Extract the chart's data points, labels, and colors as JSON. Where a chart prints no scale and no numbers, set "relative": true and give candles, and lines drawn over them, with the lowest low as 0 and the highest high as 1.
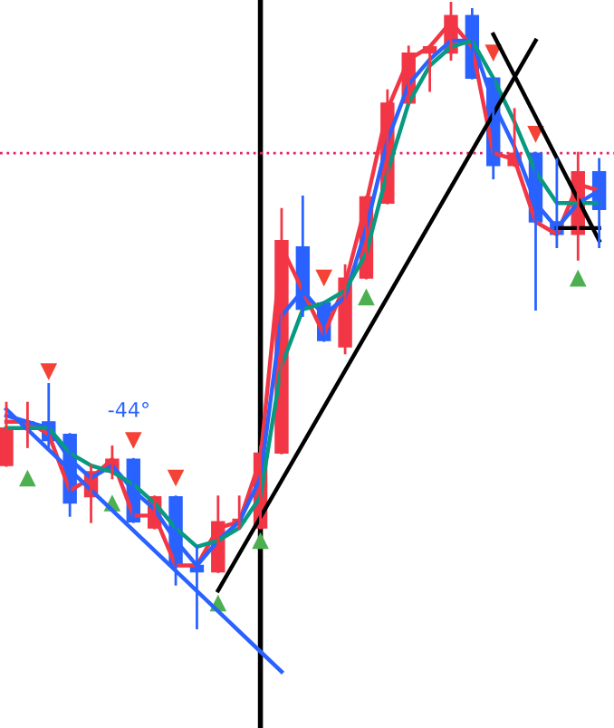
{
  "chart_data": {
    "type": "candlestick",
    "relative": true,
    "categories": [
      null,
      null,
      null,
      null,
      null,
      null,
      null,
      null,
      null,
      null,
      null,
      null,
      null,
      null,
      null,
      null,
      null,
      null,
      null,
      null,
      null,
      null,
      null,
      null,
      null,
      null,
      null,
      null,
      null
    ],
    "ohlc": [
      [
        0.26,
        0.36,
        0.26,
        0.32
      ],
      [
        0.32,
        0.36,
        0.29,
        0.33
      ],
      [
        0.33,
        0.39,
        0.29,
        0.3
      ],
      [
        0.31,
        0.31,
        0.18,
        0.2
      ],
      [
        0.21,
        0.26,
        0.17,
        0.25
      ],
      [
        0.25,
        0.29,
        0.24,
        0.27
      ],
      [
        0.27,
        0.27,
        0.17,
        0.17
      ],
      [
        0.16,
        0.21,
        0.16,
        0.21
      ],
      [
        0.21,
        0.21,
        0.07,
        0.1
      ],
      [
        0.1,
        0.13,
        0.0,
        0.09
      ],
      [
        0.09,
        0.21,
        0.09,
        0.17
      ],
      [
        0.17,
        0.21,
        0.16,
        0.17
      ],
      [
        0.16,
        0.29,
        0.16,
        0.28
      ],
      [
        0.28,
        0.67,
        0.28,
        0.62
      ],
      [
        0.61,
        0.69,
        0.5,
        0.51
      ],
      [
        0.52,
        0.52,
        0.46,
        0.46
      ],
      [
        0.45,
        0.58,
        0.44,
        0.56
      ],
      [
        0.56,
        0.69,
        0.56,
        0.69
      ],
      [
        0.68,
        0.86,
        0.68,
        0.84
      ],
      [
        0.84,
        0.93,
        0.84,
        0.92
      ],
      [
        0.92,
        0.93,
        0.86,
        0.93
      ],
      [
        0.92,
        1.0,
        0.91,
        0.98
      ],
      [
        0.98,
        0.99,
        0.88,
        0.88
      ],
      [
        0.88,
        0.88,
        0.72,
        0.74
      ],
      [
        0.74,
        0.83,
        0.74,
        0.76
      ],
      [
        0.76,
        0.76,
        0.51,
        0.65
      ],
      [
        0.65,
        0.75,
        0.61,
        0.63
      ],
      [
        0.63,
        0.76,
        0.59,
        0.73
      ],
      [
        0.73,
        0.75,
        0.61,
        0.67
      ]
    ],
    "colors": [
      "#f23645",
      "#f23645",
      "#2962ff",
      "#2962ff",
      "#f23645",
      "#f23645",
      "#2962ff",
      "#f23645",
      "#2962ff",
      "#2962ff",
      "#f23645",
      "#f23645",
      "#f23645",
      "#f23645",
      "#2962ff",
      "#2962ff",
      "#f23645",
      "#f23645",
      "#f23645",
      "#f23645",
      "#f23645",
      "#f23645",
      "#2962ff",
      "#2962ff",
      "#f23645",
      "#2962ff",
      "#2962ff",
      "#f23645",
      "#2962ff"
    ],
    "series": [
      {
        "type": "line",
        "color": "#f23645",
        "values": [
          0.33,
          0.33,
          0.31,
          0.22,
          0.24,
          0.27,
          0.18,
          0.18,
          0.1,
          0.1,
          0.16,
          0.17,
          0.27,
          0.61,
          0.54,
          0.47,
          0.55,
          0.68,
          0.83,
          0.91,
          0.93,
          0.97,
          0.93,
          0.76,
          0.75,
          0.65,
          0.63,
          0.71,
          0.7
        ]
      },
      {
        "type": "line",
        "color": "#2962ff",
        "values": [
          0.34,
          0.33,
          0.32,
          0.27,
          0.24,
          0.26,
          0.22,
          0.19,
          0.14,
          0.1,
          0.14,
          0.17,
          0.24,
          0.5,
          0.54,
          0.5,
          0.53,
          0.64,
          0.78,
          0.87,
          0.91,
          0.94,
          0.94,
          0.84,
          0.77,
          0.68,
          0.64,
          0.68,
          0.7
        ]
      },
      {
        "type": "line",
        "color": "#089981",
        "values": [
          0.32,
          0.32,
          0.32,
          0.28,
          0.26,
          0.25,
          0.23,
          0.2,
          0.16,
          0.13,
          0.14,
          0.16,
          0.21,
          0.42,
          0.51,
          0.52,
          0.54,
          0.6,
          0.73,
          0.84,
          0.9,
          0.93,
          0.94,
          0.88,
          0.81,
          0.73,
          0.68,
          0.68,
          0.68
        ]
      },
      {
        "type": "line",
        "color": "#2962ff",
        "values": [
          0.35,
          null,
          null,
          null,
          null,
          null,
          null,
          null,
          null,
          null,
          null,
          null,
          null,
          -0.07,
          null,
          null,
          null,
          null,
          null,
          null,
          null,
          null,
          null,
          null,
          null,
          null,
          null,
          null,
          null
        ]
      },
      {
        "type": "line",
        "color": "#000000",
        "values": [
          null,
          null,
          null,
          null,
          null,
          null,
          null,
          null,
          null,
          null,
          0.06,
          null,
          null,
          null,
          null,
          null,
          null,
          null,
          null,
          null,
          null,
          null,
          null,
          null,
          null,
          0.94,
          null,
          null,
          null
        ]
      },
      {
        "type": "line",
        "color": "#000000",
        "values": [
          null,
          null,
          null,
          null,
          null,
          null,
          null,
          null,
          null,
          null,
          null,
          null,
          null,
          null,
          null,
          null,
          null,
          null,
          null,
          null,
          null,
          null,
          null,
          0.95,
          null,
          null,
          null,
          null,
          0.62
        ]
      },
      {
        "type": "line",
        "color": "#000000",
        "values": [
          null,
          null,
          null,
          null,
          null,
          null,
          null,
          null,
          null,
          null,
          null,
          null,
          null,
          null,
          null,
          null,
          null,
          null,
          null,
          null,
          null,
          null,
          null,
          null,
          null,
          null,
          0.64,
          null,
          0.64
        ]
      },
      {
        "type": "scatter",
        "marker": "triangle_down",
        "color": "#f44336",
        "values": [
          null,
          null,
          0.41,
          null,
          null,
          null,
          0.3,
          null,
          0.24,
          null,
          null,
          null,
          null,
          null,
          null,
          0.56,
          null,
          null,
          null,
          null,
          null,
          null,
          null,
          0.92,
          null,
          0.79,
          null,
          null,
          null
        ]
      },
      {
        "type": "scatter",
        "marker": "triangle",
        "color": "#4caf50",
        "values": [
          null,
          0.24,
          null,
          null,
          null,
          0.2,
          null,
          null,
          null,
          null,
          0.04,
          null,
          0.14,
          null,
          null,
          null,
          null,
          0.53,
          null,
          null,
          null,
          null,
          null,
          null,
          null,
          null,
          null,
          0.56,
          null
        ]
      }
    ],
    "ref_lines": [
      {
        "axis": "y",
        "value": 0.76,
        "color": "#e91e63",
        "line_style": "dotted"
      }
    ],
    "annotations": [
      "-44°"
    ]
  }
}
